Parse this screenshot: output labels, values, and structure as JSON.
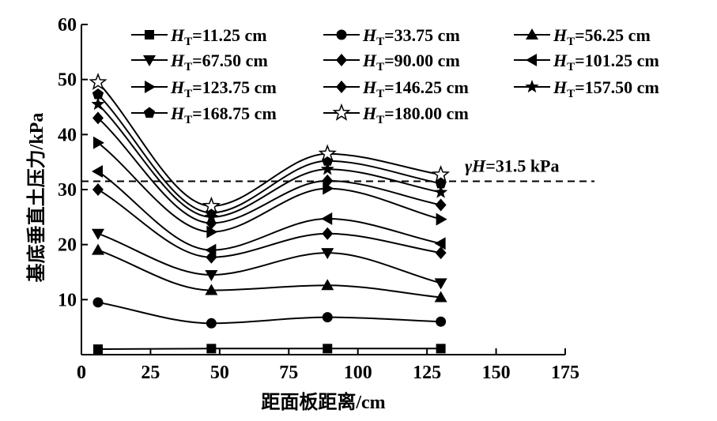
{
  "chart_data": {
    "type": "line",
    "xlabel": "距面板距离/cm",
    "ylabel": "基底垂直土压力/kPa",
    "xlim": [
      0,
      175
    ],
    "ylim": [
      0,
      60
    ],
    "xticks": [
      0,
      25,
      50,
      75,
      100,
      125,
      150,
      175
    ],
    "yticks": [
      10,
      20,
      30,
      40,
      50,
      60
    ],
    "grid": false,
    "legend_position": "top",
    "x": [
      6,
      47,
      89,
      130
    ],
    "series": [
      {
        "name": "HT=11.25 cm",
        "label_main": "H",
        "label_sub": "T",
        "label_rest": "=11.25 cm",
        "marker": "square",
        "values": [
          1.0,
          1.1,
          1.1,
          1.1
        ]
      },
      {
        "name": "HT=33.75 cm",
        "label_main": "H",
        "label_sub": "T",
        "label_rest": "=33.75 cm",
        "marker": "circle",
        "values": [
          9.5,
          5.7,
          6.8,
          6.0
        ]
      },
      {
        "name": "HT=56.25 cm",
        "label_main": "H",
        "label_sub": "T",
        "label_rest": "=56.25 cm",
        "marker": "triangle-up",
        "values": [
          19.0,
          11.7,
          12.6,
          10.4
        ]
      },
      {
        "name": "HT=67.50 cm",
        "label_main": "H",
        "label_sub": "T",
        "label_rest": "=67.50 cm",
        "marker": "triangle-down",
        "values": [
          22.0,
          14.5,
          18.5,
          13.0
        ]
      },
      {
        "name": "HT=90.00 cm",
        "label_main": "H",
        "label_sub": "T",
        "label_rest": "=90.00 cm",
        "marker": "diamond",
        "values": [
          30.0,
          17.7,
          22.0,
          18.5
        ]
      },
      {
        "name": "HT=101.25 cm",
        "label_main": "H",
        "label_sub": "T",
        "label_rest": "=101.25 cm",
        "marker": "triangle-left",
        "values": [
          33.3,
          19.0,
          24.7,
          20.2
        ]
      },
      {
        "name": "HT=123.75 cm",
        "label_main": "H",
        "label_sub": "T",
        "label_rest": "=123.75 cm",
        "marker": "triangle-right",
        "values": [
          38.5,
          22.3,
          30.2,
          24.6
        ]
      },
      {
        "name": "HT=146.25 cm",
        "label_main": "H",
        "label_sub": "T",
        "label_rest": "=146.25 cm",
        "marker": "diamond",
        "values": [
          43.0,
          23.9,
          31.6,
          27.2
        ]
      },
      {
        "name": "HT=157.50 cm",
        "label_main": "H",
        "label_sub": "T",
        "label_rest": "=157.50 cm",
        "marker": "star",
        "values": [
          45.5,
          25.0,
          33.7,
          29.5
        ]
      },
      {
        "name": "HT=168.75 cm",
        "label_main": "H",
        "label_sub": "T",
        "label_rest": "=168.75 cm",
        "marker": "pentagon",
        "values": [
          47.3,
          25.8,
          35.2,
          31.1
        ]
      },
      {
        "name": "HT=180.00 cm",
        "label_main": "H",
        "label_sub": "T",
        "label_rest": "=180.00 cm",
        "marker": "star-open",
        "values": [
          49.5,
          27.0,
          36.5,
          32.7
        ]
      }
    ],
    "reference_line": {
      "value": 31.5,
      "label_prefix": "γ",
      "label_var": "H",
      "label_rest": "=31.5 kPa",
      "style": "dashed"
    }
  }
}
